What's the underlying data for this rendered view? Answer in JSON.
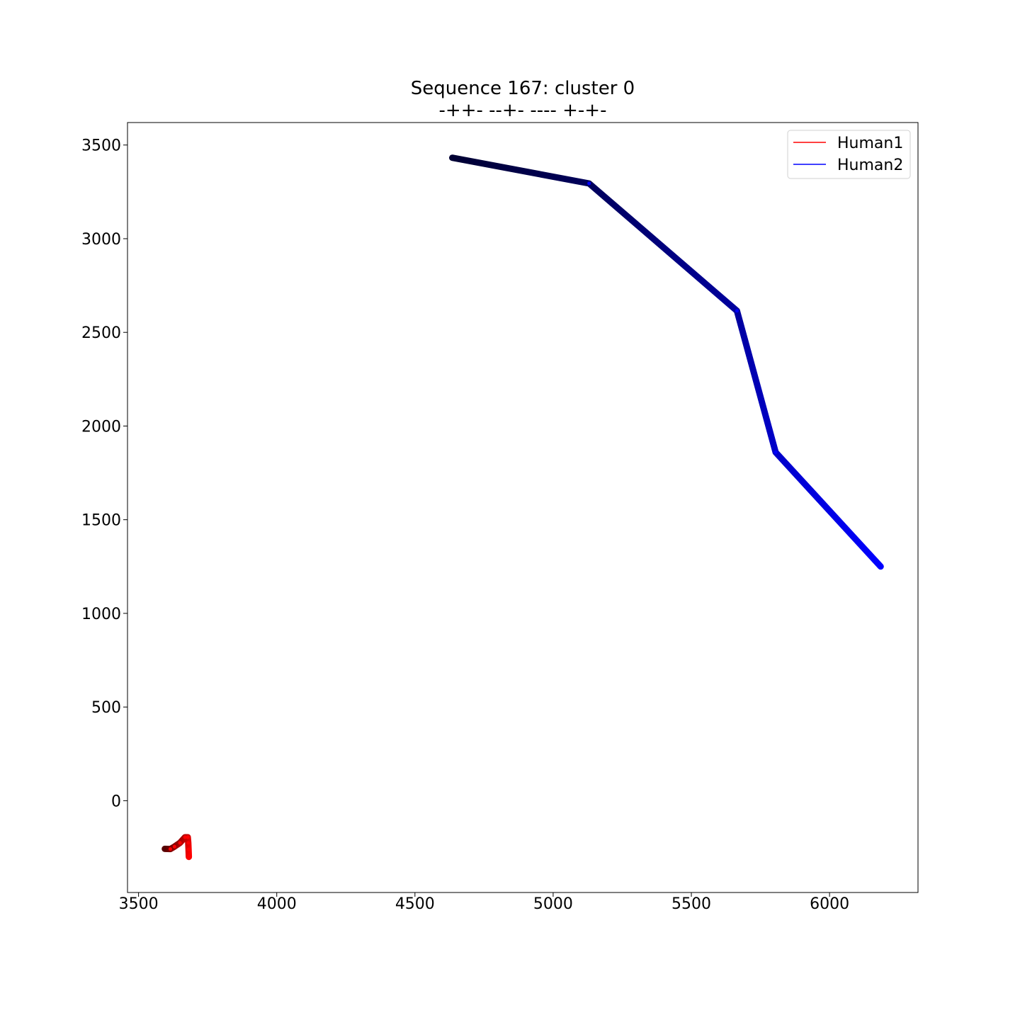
{
  "chart_data": {
    "type": "line",
    "title": "Sequence 167: cluster 0",
    "subtitle": "-++- --+- ---- +-+-",
    "xlabel": "",
    "ylabel": "",
    "xlim": [
      3460,
      6320
    ],
    "ylim": [
      -490,
      3620
    ],
    "xticks": [
      3500,
      4000,
      4500,
      5000,
      5500,
      6000
    ],
    "yticks": [
      0,
      500,
      1000,
      1500,
      2000,
      2500,
      3000,
      3500
    ],
    "grid": false,
    "legend": {
      "placement": "top-right",
      "entries": [
        "Human1",
        "Human2"
      ]
    },
    "series": [
      {
        "name": "Human1",
        "color": "#ff0000",
        "start_color": "#550000",
        "x": [
          3595,
          3615,
          3630,
          3650,
          3668,
          3678,
          3680,
          3681,
          3682
        ],
        "y": [
          -257,
          -258,
          -245,
          -225,
          -195,
          -195,
          -225,
          -260,
          -300
        ]
      },
      {
        "name": "Human2",
        "color": "#0000ff",
        "start_color": "#000033",
        "x": [
          4635,
          5130,
          5665,
          5805,
          6185
        ],
        "y": [
          3432,
          3295,
          2615,
          1860,
          1250
        ]
      }
    ]
  }
}
